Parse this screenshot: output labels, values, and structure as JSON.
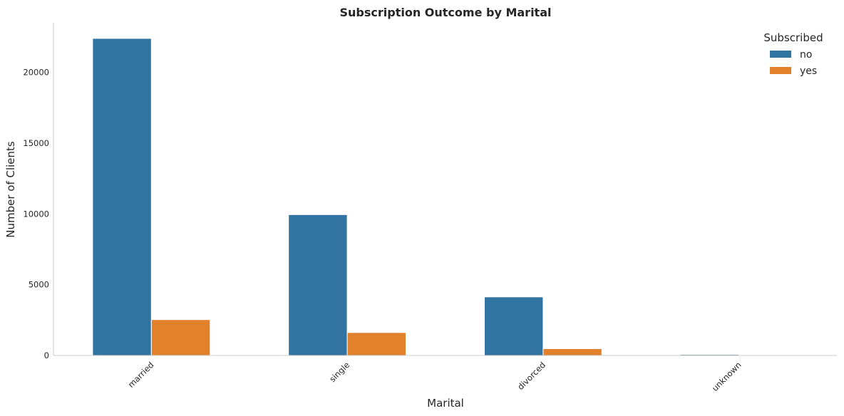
{
  "chart_data": {
    "type": "bar",
    "title": "Subscription Outcome by Marital",
    "xlabel": "Marital",
    "ylabel": "Number of Clients",
    "categories": [
      "married",
      "single",
      "divorced",
      "unknown"
    ],
    "series": [
      {
        "name": "no",
        "color": "#3274a1",
        "values": [
          22396,
          9948,
          4136,
          68
        ]
      },
      {
        "name": "yes",
        "color": "#e1812c",
        "values": [
          2532,
          1620,
          476,
          12
        ]
      }
    ],
    "ylim": [
      0,
      23500
    ],
    "yticks": [
      0,
      5000,
      10000,
      15000,
      20000
    ],
    "ytick_labels": [
      "0",
      "5000",
      "10000",
      "15000",
      "20000"
    ],
    "legend": {
      "title": "Subscribed",
      "placement": "top-right"
    },
    "grid": false
  }
}
